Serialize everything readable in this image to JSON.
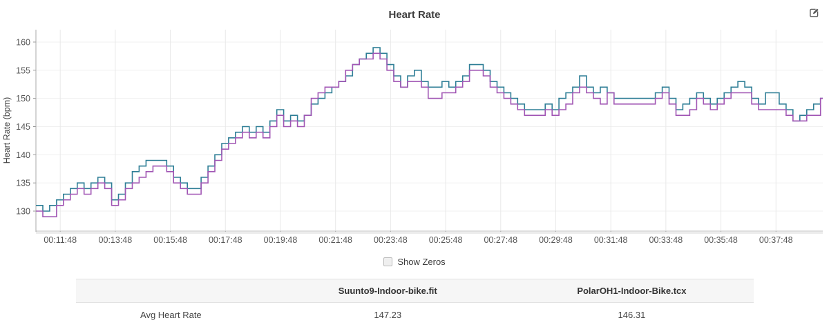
{
  "header": {
    "title": "Heart Rate"
  },
  "chart_data": {
    "type": "line",
    "title": "Heart Rate",
    "xlabel": "",
    "ylabel": "Heart Rate (bpm)",
    "grid": true,
    "legend_position": "none",
    "ylim": [
      126.45,
      162.2
    ],
    "yticks": [
      130,
      135,
      140,
      145,
      150,
      155,
      160
    ],
    "xlim_seconds": [
      655,
      2370
    ],
    "xticks": [
      {
        "t": 708,
        "label": "00:11:48"
      },
      {
        "t": 828,
        "label": "00:13:48"
      },
      {
        "t": 948,
        "label": "00:15:48"
      },
      {
        "t": 1068,
        "label": "00:17:48"
      },
      {
        "t": 1188,
        "label": "00:19:48"
      },
      {
        "t": 1308,
        "label": "00:21:48"
      },
      {
        "t": 1428,
        "label": "00:23:48"
      },
      {
        "t": 1548,
        "label": "00:25:48"
      },
      {
        "t": 1668,
        "label": "00:27:48"
      },
      {
        "t": 1788,
        "label": "00:29:48"
      },
      {
        "t": 1908,
        "label": "00:31:48"
      },
      {
        "t": 2028,
        "label": "00:33:48"
      },
      {
        "t": 2148,
        "label": "00:35:48"
      },
      {
        "t": 2268,
        "label": "00:37:48"
      }
    ],
    "series": [
      {
        "name": "Suunto9-Indoor-bike.fit",
        "color": "#2e7e96",
        "style": "step",
        "points": [
          [
            655,
            131
          ],
          [
            670,
            130
          ],
          [
            685,
            131
          ],
          [
            700,
            132
          ],
          [
            715,
            133
          ],
          [
            730,
            134
          ],
          [
            745,
            135
          ],
          [
            760,
            134
          ],
          [
            775,
            135
          ],
          [
            790,
            136
          ],
          [
            805,
            135
          ],
          [
            820,
            132
          ],
          [
            835,
            133
          ],
          [
            850,
            135
          ],
          [
            865,
            137
          ],
          [
            880,
            138
          ],
          [
            895,
            139
          ],
          [
            910,
            139
          ],
          [
            925,
            139
          ],
          [
            940,
            138
          ],
          [
            955,
            136
          ],
          [
            970,
            135
          ],
          [
            985,
            134
          ],
          [
            1000,
            134
          ],
          [
            1015,
            136
          ],
          [
            1030,
            138
          ],
          [
            1045,
            140
          ],
          [
            1060,
            142
          ],
          [
            1075,
            143
          ],
          [
            1090,
            144
          ],
          [
            1105,
            145
          ],
          [
            1120,
            144
          ],
          [
            1135,
            145
          ],
          [
            1150,
            144
          ],
          [
            1165,
            146
          ],
          [
            1180,
            148
          ],
          [
            1195,
            146
          ],
          [
            1210,
            147
          ],
          [
            1225,
            146
          ],
          [
            1240,
            147
          ],
          [
            1255,
            149
          ],
          [
            1270,
            150
          ],
          [
            1285,
            151
          ],
          [
            1300,
            152
          ],
          [
            1315,
            153
          ],
          [
            1330,
            154
          ],
          [
            1345,
            156
          ],
          [
            1360,
            157
          ],
          [
            1375,
            158
          ],
          [
            1390,
            159
          ],
          [
            1405,
            158
          ],
          [
            1420,
            156
          ],
          [
            1435,
            154
          ],
          [
            1450,
            152
          ],
          [
            1465,
            154
          ],
          [
            1480,
            155
          ],
          [
            1495,
            153
          ],
          [
            1510,
            152
          ],
          [
            1525,
            152
          ],
          [
            1540,
            153
          ],
          [
            1555,
            152
          ],
          [
            1570,
            153
          ],
          [
            1585,
            154
          ],
          [
            1600,
            156
          ],
          [
            1615,
            156
          ],
          [
            1630,
            155
          ],
          [
            1645,
            153
          ],
          [
            1660,
            152
          ],
          [
            1675,
            151
          ],
          [
            1690,
            150
          ],
          [
            1705,
            149
          ],
          [
            1720,
            148
          ],
          [
            1735,
            148
          ],
          [
            1750,
            148
          ],
          [
            1765,
            149
          ],
          [
            1780,
            148
          ],
          [
            1795,
            150
          ],
          [
            1810,
            151
          ],
          [
            1825,
            152
          ],
          [
            1840,
            154
          ],
          [
            1855,
            152
          ],
          [
            1870,
            151
          ],
          [
            1885,
            152
          ],
          [
            1900,
            151
          ],
          [
            1915,
            150
          ],
          [
            1930,
            150
          ],
          [
            1945,
            150
          ],
          [
            1960,
            150
          ],
          [
            1975,
            150
          ],
          [
            1990,
            150
          ],
          [
            2005,
            151
          ],
          [
            2020,
            152
          ],
          [
            2035,
            150
          ],
          [
            2050,
            148
          ],
          [
            2065,
            149
          ],
          [
            2080,
            150
          ],
          [
            2095,
            151
          ],
          [
            2110,
            150
          ],
          [
            2125,
            149
          ],
          [
            2140,
            150
          ],
          [
            2155,
            151
          ],
          [
            2170,
            152
          ],
          [
            2185,
            153
          ],
          [
            2200,
            152
          ],
          [
            2215,
            150
          ],
          [
            2230,
            149
          ],
          [
            2245,
            151
          ],
          [
            2260,
            151
          ],
          [
            2275,
            149
          ],
          [
            2290,
            148
          ],
          [
            2305,
            146
          ],
          [
            2320,
            147
          ],
          [
            2335,
            148
          ],
          [
            2350,
            149
          ],
          [
            2365,
            150
          ]
        ]
      },
      {
        "name": "PolarOH1-Indoor-Bike.tcx",
        "color": "#a156b4",
        "style": "step",
        "points": [
          [
            655,
            130
          ],
          [
            670,
            129
          ],
          [
            685,
            129
          ],
          [
            700,
            131
          ],
          [
            715,
            132
          ],
          [
            730,
            133
          ],
          [
            745,
            134
          ],
          [
            760,
            133
          ],
          [
            775,
            134
          ],
          [
            790,
            135
          ],
          [
            805,
            134
          ],
          [
            820,
            131
          ],
          [
            835,
            132
          ],
          [
            850,
            134
          ],
          [
            865,
            135
          ],
          [
            880,
            136
          ],
          [
            895,
            137
          ],
          [
            910,
            138
          ],
          [
            925,
            138
          ],
          [
            940,
            137
          ],
          [
            955,
            135
          ],
          [
            970,
            134
          ],
          [
            985,
            133
          ],
          [
            1000,
            133
          ],
          [
            1015,
            135
          ],
          [
            1030,
            137
          ],
          [
            1045,
            139
          ],
          [
            1060,
            141
          ],
          [
            1075,
            142
          ],
          [
            1090,
            143
          ],
          [
            1105,
            144
          ],
          [
            1120,
            143
          ],
          [
            1135,
            144
          ],
          [
            1150,
            143
          ],
          [
            1165,
            145
          ],
          [
            1180,
            147
          ],
          [
            1195,
            145
          ],
          [
            1210,
            146
          ],
          [
            1225,
            145
          ],
          [
            1240,
            147
          ],
          [
            1255,
            150
          ],
          [
            1270,
            151
          ],
          [
            1285,
            152
          ],
          [
            1300,
            152
          ],
          [
            1315,
            153
          ],
          [
            1330,
            155
          ],
          [
            1345,
            156
          ],
          [
            1360,
            157
          ],
          [
            1375,
            157
          ],
          [
            1390,
            158
          ],
          [
            1405,
            157
          ],
          [
            1420,
            155
          ],
          [
            1435,
            153
          ],
          [
            1450,
            152
          ],
          [
            1465,
            153
          ],
          [
            1480,
            153
          ],
          [
            1495,
            152
          ],
          [
            1510,
            150
          ],
          [
            1525,
            150
          ],
          [
            1540,
            151
          ],
          [
            1555,
            151
          ],
          [
            1570,
            152
          ],
          [
            1585,
            153
          ],
          [
            1600,
            155
          ],
          [
            1615,
            155
          ],
          [
            1630,
            154
          ],
          [
            1645,
            152
          ],
          [
            1660,
            151
          ],
          [
            1675,
            150
          ],
          [
            1690,
            149
          ],
          [
            1705,
            148
          ],
          [
            1720,
            147
          ],
          [
            1735,
            147
          ],
          [
            1750,
            147
          ],
          [
            1765,
            148
          ],
          [
            1780,
            147
          ],
          [
            1795,
            148
          ],
          [
            1810,
            149
          ],
          [
            1825,
            151
          ],
          [
            1840,
            152
          ],
          [
            1855,
            151
          ],
          [
            1870,
            150
          ],
          [
            1885,
            149
          ],
          [
            1900,
            151
          ],
          [
            1915,
            149
          ],
          [
            1930,
            149
          ],
          [
            1945,
            149
          ],
          [
            1960,
            149
          ],
          [
            1975,
            149
          ],
          [
            1990,
            149
          ],
          [
            2005,
            150
          ],
          [
            2020,
            151
          ],
          [
            2035,
            149
          ],
          [
            2050,
            147
          ],
          [
            2065,
            147
          ],
          [
            2080,
            148
          ],
          [
            2095,
            150
          ],
          [
            2110,
            149
          ],
          [
            2125,
            148
          ],
          [
            2140,
            149
          ],
          [
            2155,
            150
          ],
          [
            2170,
            151
          ],
          [
            2185,
            151
          ],
          [
            2200,
            151
          ],
          [
            2215,
            149
          ],
          [
            2230,
            148
          ],
          [
            2245,
            148
          ],
          [
            2260,
            148
          ],
          [
            2275,
            148
          ],
          [
            2290,
            147
          ],
          [
            2305,
            146
          ],
          [
            2320,
            146
          ],
          [
            2335,
            147
          ],
          [
            2350,
            147
          ],
          [
            2365,
            150
          ]
        ]
      }
    ]
  },
  "controls": {
    "show_zeros_label": "Show Zeros",
    "show_zeros_checked": false
  },
  "table": {
    "columns": [
      "",
      "Suunto9-Indoor-bike.fit",
      "PolarOH1-Indoor-Bike.tcx"
    ],
    "rows": [
      {
        "label": "Avg Heart Rate",
        "values": [
          "147.23",
          "146.31"
        ]
      }
    ]
  }
}
